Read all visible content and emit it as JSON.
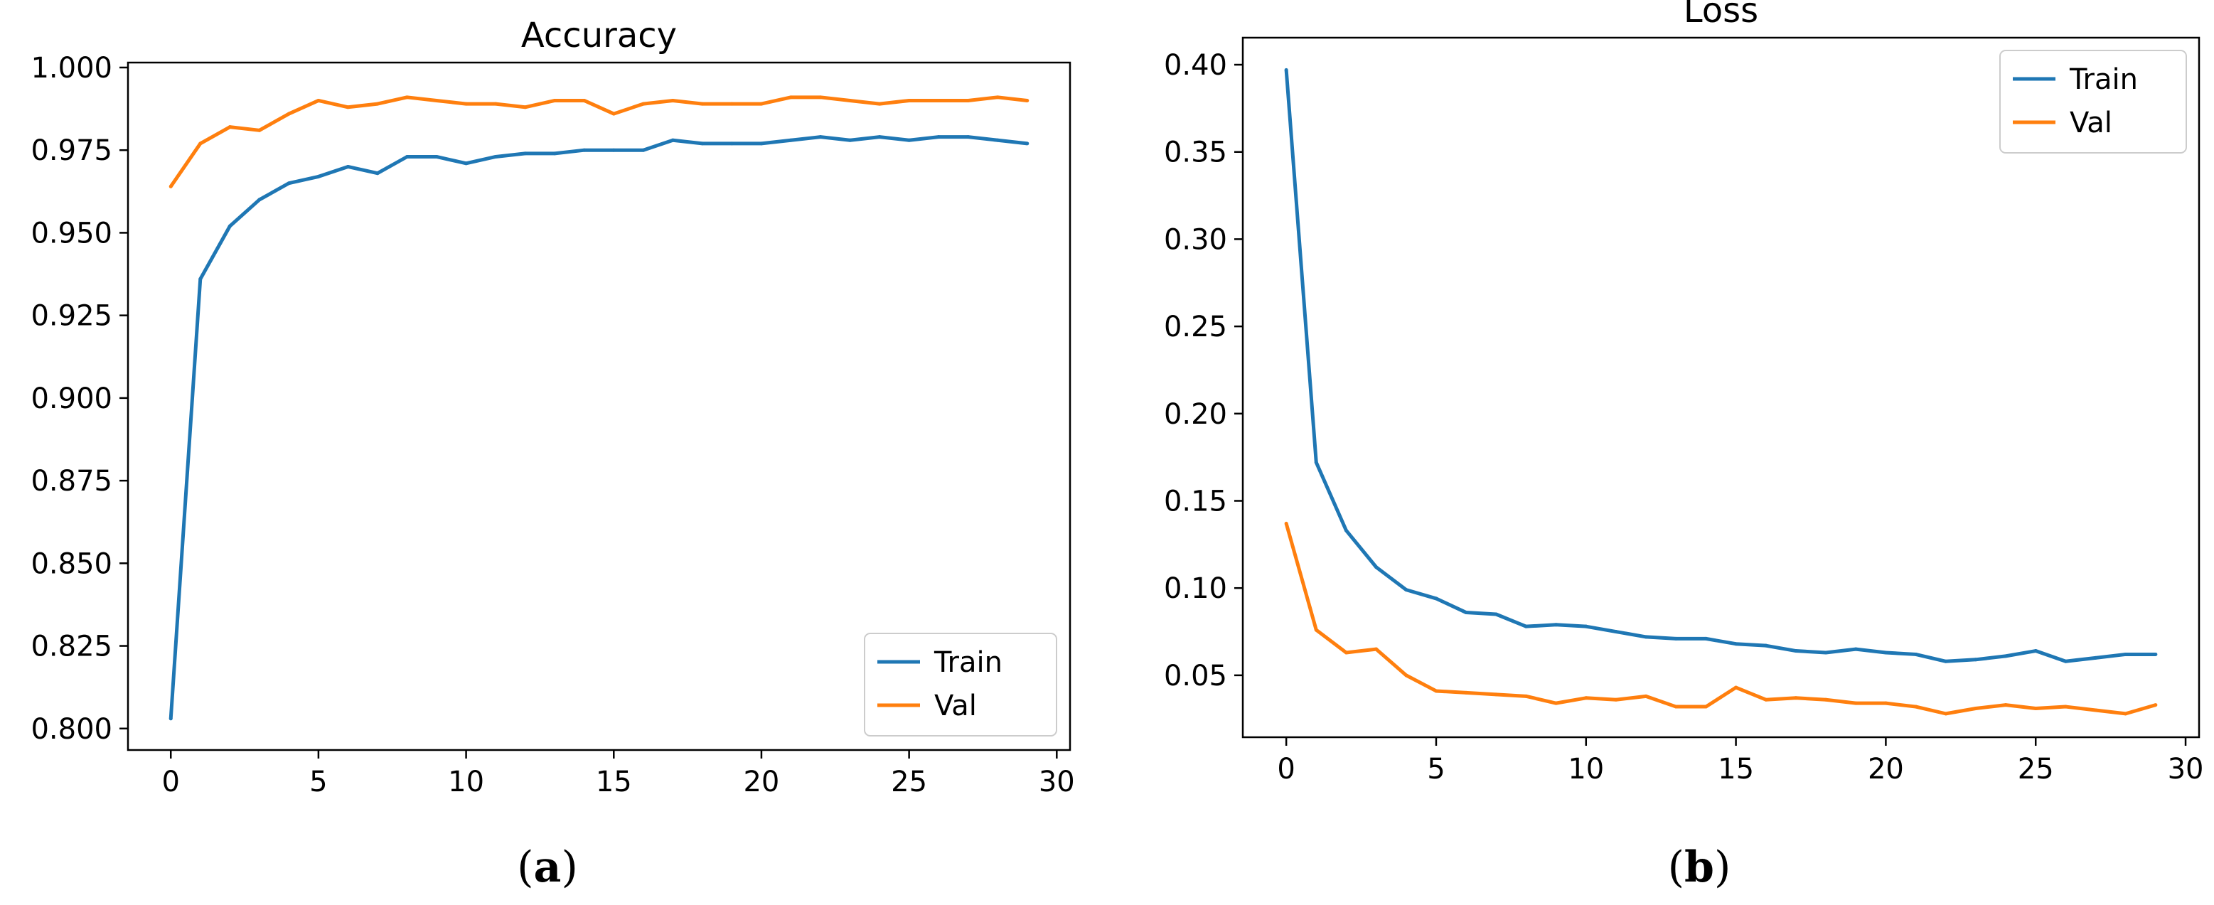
{
  "chart_data": [
    {
      "type": "line",
      "title": "Accuracy",
      "xlabel": "",
      "ylabel": "",
      "xlim": [
        -1.45,
        30.45
      ],
      "ylim": [
        0.7935,
        1.0015
      ],
      "xticks": [
        "0",
        "5",
        "10",
        "15",
        "20",
        "25",
        "30"
      ],
      "yticks": [
        "0.800",
        "0.825",
        "0.850",
        "0.875",
        "0.900",
        "0.925",
        "0.950",
        "0.975",
        "1.000"
      ],
      "legend_position": "lower-right",
      "grid": false,
      "x": [
        0,
        1,
        2,
        3,
        4,
        5,
        6,
        7,
        8,
        9,
        10,
        11,
        12,
        13,
        14,
        15,
        16,
        17,
        18,
        19,
        20,
        21,
        22,
        23,
        24,
        25,
        26,
        27,
        28,
        29
      ],
      "series": [
        {
          "name": "Train",
          "color": "#1f77b4",
          "values": [
            0.803,
            0.936,
            0.952,
            0.96,
            0.965,
            0.967,
            0.97,
            0.968,
            0.973,
            0.973,
            0.971,
            0.973,
            0.974,
            0.974,
            0.975,
            0.975,
            0.975,
            0.978,
            0.977,
            0.977,
            0.977,
            0.978,
            0.979,
            0.978,
            0.979,
            0.978,
            0.979,
            0.979,
            0.978,
            0.977
          ]
        },
        {
          "name": "Val",
          "color": "#ff7f0e",
          "values": [
            0.964,
            0.977,
            0.982,
            0.981,
            0.986,
            0.99,
            0.988,
            0.989,
            0.991,
            0.99,
            0.989,
            0.989,
            0.988,
            0.99,
            0.99,
            0.986,
            0.989,
            0.99,
            0.989,
            0.989,
            0.989,
            0.991,
            0.991,
            0.99,
            0.989,
            0.99,
            0.99,
            0.99,
            0.991,
            0.99
          ]
        }
      ]
    },
    {
      "type": "line",
      "title": "Loss",
      "xlabel": "",
      "ylabel": "",
      "xlim": [
        -1.45,
        30.45
      ],
      "ylim": [
        0.0145,
        0.4155
      ],
      "xticks": [
        "0",
        "5",
        "10",
        "15",
        "20",
        "25",
        "30"
      ],
      "yticks": [
        "0.05",
        "0.10",
        "0.15",
        "0.20",
        "0.25",
        "0.30",
        "0.35",
        "0.40"
      ],
      "legend_position": "upper-right",
      "grid": false,
      "x": [
        0,
        1,
        2,
        3,
        4,
        5,
        6,
        7,
        8,
        9,
        10,
        11,
        12,
        13,
        14,
        15,
        16,
        17,
        18,
        19,
        20,
        21,
        22,
        23,
        24,
        25,
        26,
        27,
        28,
        29
      ],
      "series": [
        {
          "name": "Train",
          "color": "#1f77b4",
          "values": [
            0.397,
            0.172,
            0.133,
            0.112,
            0.099,
            0.094,
            0.086,
            0.085,
            0.078,
            0.079,
            0.078,
            0.075,
            0.072,
            0.071,
            0.071,
            0.068,
            0.067,
            0.064,
            0.063,
            0.065,
            0.063,
            0.062,
            0.058,
            0.059,
            0.061,
            0.064,
            0.058,
            0.06,
            0.062,
            0.062
          ]
        },
        {
          "name": "Val",
          "color": "#ff7f0e",
          "values": [
            0.137,
            0.076,
            0.063,
            0.065,
            0.05,
            0.041,
            0.04,
            0.039,
            0.038,
            0.034,
            0.037,
            0.036,
            0.038,
            0.032,
            0.032,
            0.043,
            0.036,
            0.037,
            0.036,
            0.034,
            0.034,
            0.032,
            0.028,
            0.031,
            0.033,
            0.031,
            0.032,
            0.03,
            0.028,
            0.033
          ]
        }
      ]
    }
  ],
  "captions": [
    "a",
    "b"
  ]
}
